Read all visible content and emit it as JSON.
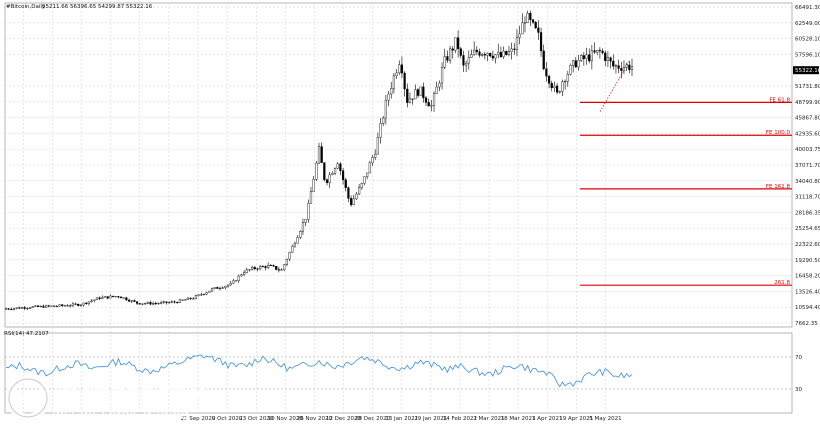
{
  "chart_data": {
    "type": "candlestick",
    "title": "#Bitcoin,Daily",
    "ohlc_text": "55211.66 56396.65 54299.87 55322.16",
    "price_axis": {
      "ticks": [
        "66491.30",
        "62549.00",
        "60528.10",
        "57596.10",
        "55322.16",
        "51731.80",
        "48799.90",
        "45867.80",
        "42935.60",
        "40003.75",
        "37071.70",
        "34040.80",
        "31118.70",
        "28186.35",
        "25254.65",
        "22322.60",
        "19290.50",
        "16458.20",
        "13526.40",
        "10594.40",
        "7662.35"
      ],
      "current_price": "55322.16",
      "ylim": [
        7662.35,
        66491.3
      ]
    },
    "dates": [
      "23 Sep 2020",
      "9 Oct 2020",
      "23 Oct 2020",
      "10 Nov 2020",
      "26 Nov 2020",
      "12 Dec 2020",
      "28 Dec 2020",
      "13 Jan 2021",
      "29 Jan 2021",
      "14 Feb 2021",
      "2 Mar 2021",
      "18 Mar 2021",
      "3 Apr 2021",
      "19 Apr 2021",
      "5 May 2021"
    ],
    "fibonacci": [
      {
        "label": "FE 61.8",
        "price": 48700
      },
      {
        "label": "FE 100.0",
        "price": 42700
      },
      {
        "label": "FE 161.8",
        "price": 32900
      },
      {
        "label": "261.8",
        "price": 15300
      }
    ],
    "rsi": {
      "label": "RSI(14) 47.2107",
      "ticks": [
        "70",
        "30"
      ],
      "range": [
        0,
        100
      ]
    },
    "price_path": [
      [
        0,
        11000
      ],
      [
        0.04,
        11300
      ],
      [
        0.08,
        11500
      ],
      [
        0.12,
        11800
      ],
      [
        0.15,
        13000
      ],
      [
        0.18,
        13300
      ],
      [
        0.21,
        12000
      ],
      [
        0.24,
        12000
      ],
      [
        0.27,
        12200
      ],
      [
        0.3,
        13000
      ],
      [
        0.33,
        14600
      ],
      [
        0.36,
        15500
      ],
      [
        0.38,
        17800
      ],
      [
        0.4,
        18500
      ],
      [
        0.42,
        18800
      ],
      [
        0.44,
        18000
      ],
      [
        0.46,
        23000
      ],
      [
        0.48,
        28000
      ],
      [
        0.5,
        40000
      ],
      [
        0.51,
        34000
      ],
      [
        0.53,
        38000
      ],
      [
        0.55,
        30000
      ],
      [
        0.57,
        34000
      ],
      [
        0.59,
        40000
      ],
      [
        0.61,
        50000
      ],
      [
        0.63,
        57000
      ],
      [
        0.64,
        49000
      ],
      [
        0.66,
        51000
      ],
      [
        0.68,
        48000
      ],
      [
        0.7,
        56000
      ],
      [
        0.72,
        60000
      ],
      [
        0.73,
        55000
      ],
      [
        0.75,
        58000
      ],
      [
        0.77,
        58000
      ],
      [
        0.79,
        57000
      ],
      [
        0.81,
        58000
      ],
      [
        0.83,
        64500
      ],
      [
        0.85,
        61000
      ],
      [
        0.86,
        55000
      ],
      [
        0.88,
        50000
      ],
      [
        0.89,
        53000
      ],
      [
        0.91,
        56000
      ],
      [
        0.93,
        57000
      ],
      [
        0.95,
        58000
      ],
      [
        0.97,
        55300
      ]
    ],
    "rsi_path": [
      55,
      60,
      52,
      50,
      58,
      62,
      55,
      60,
      65,
      58,
      52,
      56,
      62,
      68,
      72,
      65,
      58,
      60,
      70,
      62,
      55,
      60,
      65,
      58,
      62,
      70,
      66,
      58,
      56,
      64,
      60,
      55,
      58,
      52,
      48,
      55,
      60,
      54,
      50,
      35,
      38,
      48,
      52,
      46,
      47
    ]
  },
  "watermark": {
    "brand": "instaforex",
    "tagline": "Instant Forex Trading"
  },
  "colors": {
    "candle": "#000000",
    "grid": "#cfcfcf",
    "fib": "#e00000",
    "rsi": "#3a8fe0"
  }
}
